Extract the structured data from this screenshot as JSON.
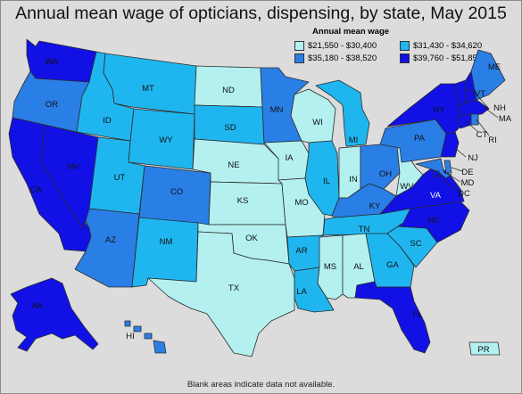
{
  "title": "Annual mean wage of opticians, dispensing, by state, May 2015",
  "legend": {
    "title": "Annual mean wage",
    "bins": [
      {
        "label": "$21,550 - $30,400",
        "color": "#b3f0ef"
      },
      {
        "label": "$31,430 - $34,620",
        "color": "#1fb6f0"
      },
      {
        "label": "$35,180 - $38,520",
        "color": "#2a7fe6"
      },
      {
        "label": "$39,760 - $51,850",
        "color": "#1111e6"
      }
    ]
  },
  "footer": "Blank areas indicate data not available.",
  "states": {
    "WA": {
      "label": "WA",
      "bin": 3
    },
    "OR": {
      "label": "OR",
      "bin": 2
    },
    "CA": {
      "label": "CA",
      "bin": 3
    },
    "NV": {
      "label": "NV",
      "bin": 3
    },
    "ID": {
      "label": "ID",
      "bin": 1
    },
    "MT": {
      "label": "MT",
      "bin": 1
    },
    "WY": {
      "label": "WY",
      "bin": 1
    },
    "UT": {
      "label": "UT",
      "bin": 1
    },
    "AZ": {
      "label": "AZ",
      "bin": 2
    },
    "CO": {
      "label": "CO",
      "bin": 2
    },
    "NM": {
      "label": "NM",
      "bin": 1
    },
    "ND": {
      "label": "ND",
      "bin": 0
    },
    "SD": {
      "label": "SD",
      "bin": 1
    },
    "NE": {
      "label": "NE",
      "bin": 0
    },
    "KS": {
      "label": "KS",
      "bin": 0
    },
    "OK": {
      "label": "OK",
      "bin": 0
    },
    "TX": {
      "label": "TX",
      "bin": 0
    },
    "MN": {
      "label": "MN",
      "bin": 2
    },
    "IA": {
      "label": "IA",
      "bin": 0
    },
    "MO": {
      "label": "MO",
      "bin": 0
    },
    "AR": {
      "label": "AR",
      "bin": 1
    },
    "LA": {
      "label": "LA",
      "bin": 1
    },
    "WI": {
      "label": "WI",
      "bin": 0
    },
    "IL": {
      "label": "IL",
      "bin": 1
    },
    "MI": {
      "label": "MI",
      "bin": 1
    },
    "IN": {
      "label": "IN",
      "bin": 0
    },
    "OH": {
      "label": "OH",
      "bin": 2
    },
    "KY": {
      "label": "KY",
      "bin": 2
    },
    "TN": {
      "label": "TN",
      "bin": 1
    },
    "MS": {
      "label": "MS",
      "bin": 0
    },
    "AL": {
      "label": "AL",
      "bin": 0
    },
    "GA": {
      "label": "GA",
      "bin": 1
    },
    "FL": {
      "label": "FL",
      "bin": 3
    },
    "SC": {
      "label": "SC",
      "bin": 1
    },
    "NC": {
      "label": "NC",
      "bin": 3
    },
    "VA": {
      "label": "VA",
      "bin": 3
    },
    "WV": {
      "label": "WV",
      "bin": 0
    },
    "PA": {
      "label": "PA",
      "bin": 2
    },
    "NY": {
      "label": "NY",
      "bin": 3
    },
    "VT": {
      "label": "VT",
      "bin": 3
    },
    "NH": {
      "label": "NH",
      "bin": 3
    },
    "ME": {
      "label": "ME",
      "bin": 2
    },
    "MA": {
      "label": "MA",
      "bin": 3
    },
    "RI": {
      "label": "RI",
      "bin": 2
    },
    "CT": {
      "label": "CT",
      "bin": 3
    },
    "NJ": {
      "label": "NJ",
      "bin": 3
    },
    "DE": {
      "label": "DE",
      "bin": 2
    },
    "MD": {
      "label": "MD",
      "bin": 2
    },
    "DC": {
      "label": "DC",
      "bin": 3
    },
    "AK": {
      "label": "AK",
      "bin": 3
    },
    "HI": {
      "label": "HI",
      "bin": 2
    },
    "PR": {
      "label": "PR",
      "bin": 0
    }
  }
}
